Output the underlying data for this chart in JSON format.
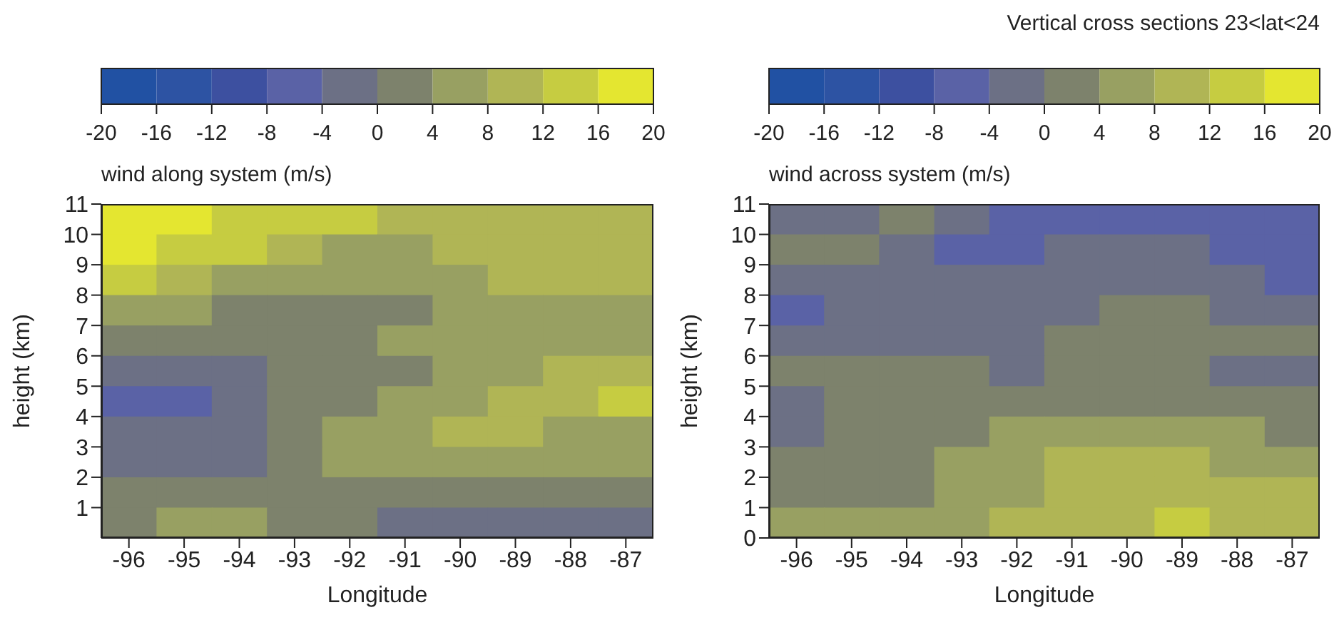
{
  "chart_data": [
    {
      "type": "heatmap",
      "clabel": "wind along system (m/s)",
      "xlabel": "Longitude",
      "ylabel": "height (km)",
      "xlim": [
        -96.5,
        -86.5
      ],
      "xticks": [
        -96,
        -95,
        -94,
        -93,
        -92,
        -91,
        -90,
        -89,
        -88,
        -87
      ],
      "ylim": [
        0,
        11
      ],
      "yticks": [
        1,
        2,
        3,
        4,
        5,
        6,
        7,
        8,
        9,
        10,
        11
      ],
      "clim": [
        -20,
        20
      ],
      "cticks": [
        -20,
        -16,
        -12,
        -8,
        -4,
        0,
        4,
        8,
        12,
        16,
        20
      ],
      "colors": [
        "#2151a3",
        "#2d53a3",
        "#3d50a0",
        "#5a62a6",
        "#6c7085",
        "#7d826c",
        "#98a062",
        "#b0b555",
        "#c6cc41",
        "#e4e630"
      ],
      "cells": [
        [
          18,
          18,
          14,
          14,
          14,
          10,
          10,
          10,
          10,
          10
        ],
        [
          18,
          14,
          14,
          10,
          6,
          6,
          10,
          10,
          10,
          10
        ],
        [
          14,
          10,
          6,
          6,
          6,
          6,
          6,
          10,
          10,
          10
        ],
        [
          6,
          6,
          2,
          2,
          2,
          2,
          6,
          6,
          6,
          6
        ],
        [
          2,
          2,
          2,
          2,
          2,
          6,
          6,
          6,
          6,
          6
        ],
        [
          -2,
          -2,
          -2,
          2,
          2,
          2,
          6,
          6,
          10,
          10
        ],
        [
          -6,
          -6,
          -2,
          2,
          2,
          6,
          6,
          10,
          10,
          14
        ],
        [
          -2,
          -2,
          -2,
          2,
          6,
          6,
          10,
          10,
          6,
          6
        ],
        [
          -2,
          -2,
          -2,
          2,
          6,
          6,
          6,
          6,
          6,
          6
        ],
        [
          2,
          2,
          2,
          2,
          2,
          2,
          2,
          2,
          2,
          2
        ],
        [
          2,
          6,
          6,
          2,
          2,
          -2,
          -2,
          -2,
          -2,
          -2
        ]
      ]
    },
    {
      "type": "heatmap",
      "clabel": "wind across system (m/s)",
      "xlabel": "Longitude",
      "ylabel": "height (km)",
      "xlim": [
        -96.5,
        -86.5
      ],
      "xticks": [
        -96,
        -95,
        -94,
        -93,
        -92,
        -91,
        -90,
        -89,
        -88,
        -87
      ],
      "ylim": [
        0,
        11
      ],
      "yticks": [
        0,
        1,
        2,
        3,
        4,
        5,
        6,
        7,
        8,
        9,
        10,
        11
      ],
      "clim": [
        -20,
        20
      ],
      "cticks": [
        -20,
        -16,
        -12,
        -8,
        -4,
        0,
        4,
        8,
        12,
        16,
        20
      ],
      "colors": [
        "#2151a3",
        "#2d53a3",
        "#3d50a0",
        "#5a62a6",
        "#6c7085",
        "#7d826c",
        "#98a062",
        "#b0b555",
        "#c6cc41",
        "#e4e630"
      ],
      "annotations": [
        "Vertical cross sections 23<lat<24"
      ],
      "cells": [
        [
          -2,
          -2,
          2,
          -2,
          -6,
          -6,
          -6,
          -6,
          -6,
          -6
        ],
        [
          2,
          2,
          -2,
          -6,
          -6,
          -2,
          -2,
          -2,
          -6,
          -6
        ],
        [
          -2,
          -2,
          -2,
          -2,
          -2,
          -2,
          -2,
          -2,
          -2,
          -6
        ],
        [
          -6,
          -2,
          -2,
          -2,
          -2,
          -2,
          2,
          2,
          -2,
          -2
        ],
        [
          -2,
          -2,
          -2,
          -2,
          -2,
          2,
          2,
          2,
          2,
          2
        ],
        [
          2,
          2,
          2,
          2,
          -2,
          2,
          2,
          2,
          -2,
          -2
        ],
        [
          -2,
          2,
          2,
          2,
          2,
          2,
          2,
          2,
          2,
          2
        ],
        [
          -2,
          2,
          2,
          2,
          6,
          6,
          6,
          6,
          6,
          2
        ],
        [
          2,
          2,
          2,
          6,
          6,
          10,
          10,
          10,
          6,
          6
        ],
        [
          2,
          2,
          2,
          6,
          6,
          10,
          10,
          10,
          10,
          10
        ],
        [
          6,
          6,
          6,
          6,
          10,
          10,
          10,
          14,
          10,
          10
        ]
      ]
    }
  ]
}
